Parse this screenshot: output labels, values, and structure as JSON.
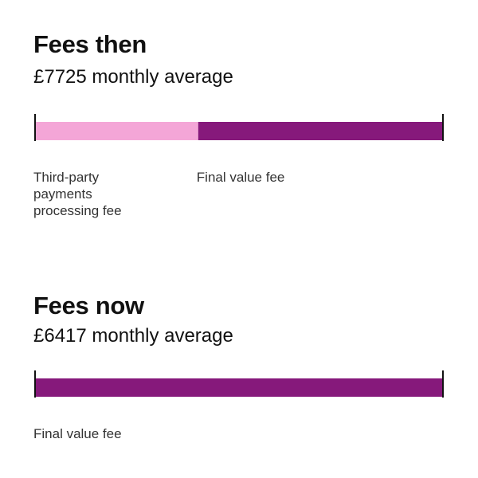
{
  "chart_data": [
    {
      "type": "bar",
      "orientation": "horizontal-stacked",
      "title": "Fees then",
      "subtitle": "£7725 monthly average",
      "segments": [
        {
          "label": "Third-party payments processing fee",
          "share": 0.4,
          "color": "#f4a6d7"
        },
        {
          "label": "Final value fee",
          "share": 0.6,
          "color": "#86197b"
        }
      ]
    },
    {
      "type": "bar",
      "orientation": "horizontal-stacked",
      "title": "Fees now",
      "subtitle": "£6417 monthly average",
      "segments": [
        {
          "label": "Final value fee",
          "share": 1.0,
          "color": "#86197b"
        }
      ]
    }
  ]
}
